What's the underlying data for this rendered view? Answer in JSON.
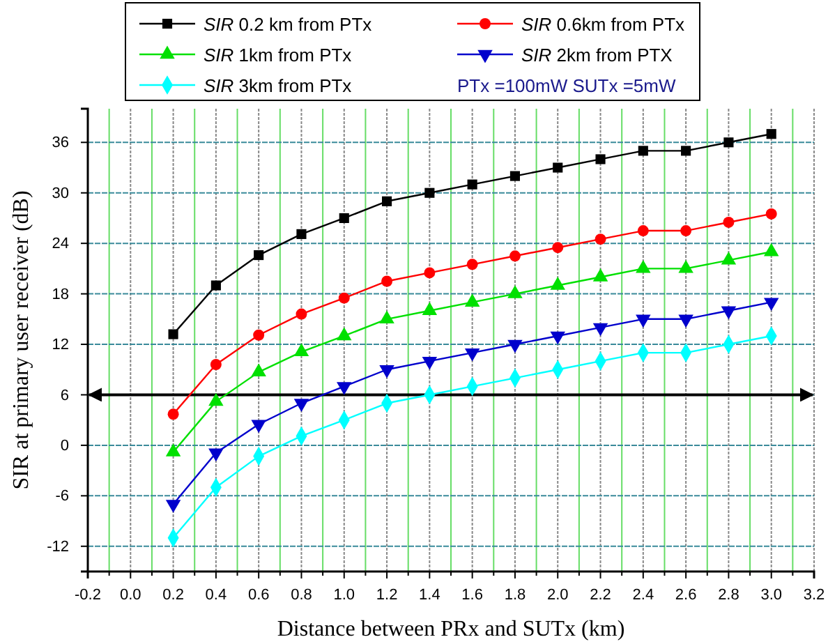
{
  "chart_data": {
    "type": "line",
    "xlabel": "Distance between PRx and SUTx (km)",
    "ylabel": "SIR at primary user receiver (dB)",
    "x": [
      0.2,
      0.4,
      0.6,
      0.8,
      1.0,
      1.2,
      1.4,
      1.6,
      1.8,
      2.0,
      2.2,
      2.4,
      2.6,
      2.8,
      3.0
    ],
    "series": [
      {
        "name": "SIR 0.2 km from PTx",
        "color": "#000000",
        "marker": "square",
        "values": [
          13.2,
          19,
          22.6,
          25.1,
          27,
          29,
          30,
          31,
          32,
          33,
          34,
          35,
          35,
          36,
          37
        ]
      },
      {
        "name": "SIR 0.6km from PTx",
        "color": "#ff0000",
        "marker": "circle",
        "values": [
          3.7,
          9.6,
          13.1,
          15.6,
          17.5,
          19.5,
          20.5,
          21.5,
          22.5,
          23.5,
          24.5,
          25.5,
          25.5,
          26.5,
          27.5
        ]
      },
      {
        "name": "SIR 1km from PTx",
        "color": "#00e000",
        "marker": "triangle",
        "values": [
          -0.8,
          5.2,
          8.7,
          11.1,
          13,
          15,
          16,
          17,
          18,
          19,
          20,
          21,
          21,
          22,
          23
        ]
      },
      {
        "name": "SIR 2km from PTX",
        "color": "#0000cc",
        "marker": "triangle-down",
        "values": [
          -7,
          -0.9,
          2.5,
          5,
          7,
          9,
          10,
          11,
          12,
          13,
          14,
          15,
          15,
          16,
          17
        ]
      },
      {
        "name": "SIR 3km from PTx",
        "color": "#00ffff",
        "marker": "diamond",
        "values": [
          -11,
          -5,
          -1.3,
          1.1,
          3,
          5,
          6,
          7,
          8,
          9,
          10,
          11,
          11,
          12,
          13
        ]
      }
    ],
    "annotations": [
      "PTx =100mW  SUTx =5mW"
    ],
    "ref_lines": [
      {
        "axis": "y",
        "value": 6,
        "color": "#000000"
      }
    ],
    "xlim": [
      -0.2,
      3.2
    ],
    "xticks": [
      {
        "value": -0.2,
        "label": "-0.2"
      },
      {
        "value": -0.1,
        "label": null
      },
      {
        "value": 0,
        "label": "0.0"
      },
      {
        "value": 0.1,
        "label": null
      },
      {
        "value": 0.2,
        "label": "0.2"
      },
      {
        "value": 0.3,
        "label": null
      },
      {
        "value": 0.4,
        "label": "0.4"
      },
      {
        "value": 0.5,
        "label": null
      },
      {
        "value": 0.6,
        "label": "0.6"
      },
      {
        "value": 0.7,
        "label": null
      },
      {
        "value": 0.8,
        "label": "0.8"
      },
      {
        "value": 0.9,
        "label": null
      },
      {
        "value": 1.0,
        "label": "1.0"
      },
      {
        "value": 1.1,
        "label": null
      },
      {
        "value": 1.2,
        "label": "1.2"
      },
      {
        "value": 1.3,
        "label": null
      },
      {
        "value": 1.4,
        "label": "1.4"
      },
      {
        "value": 1.5,
        "label": null
      },
      {
        "value": 1.6,
        "label": "1.6"
      },
      {
        "value": 1.7,
        "label": null
      },
      {
        "value": 1.8,
        "label": "1.8"
      },
      {
        "value": 1.9,
        "label": null
      },
      {
        "value": 2.0,
        "label": "2.0"
      },
      {
        "value": 2.1,
        "label": null
      },
      {
        "value": 2.2,
        "label": "2.2"
      },
      {
        "value": 2.3,
        "label": null
      },
      {
        "value": 2.4,
        "label": "2.4"
      },
      {
        "value": 2.5,
        "label": null
      },
      {
        "value": 2.6,
        "label": "2.6"
      },
      {
        "value": 2.7,
        "label": null
      },
      {
        "value": 2.8,
        "label": "2.8"
      },
      {
        "value": 2.9,
        "label": null
      },
      {
        "value": 3.0,
        "label": "3.0"
      },
      {
        "value": 3.1,
        "label": null
      },
      {
        "value": 3.2,
        "label": "3.2"
      }
    ],
    "ylim": [
      -15,
      40
    ],
    "yticks": [
      -12,
      -6,
      0,
      6,
      12,
      18,
      24,
      30,
      36
    ],
    "grid": true,
    "legend": "top",
    "line_style": "solid"
  }
}
